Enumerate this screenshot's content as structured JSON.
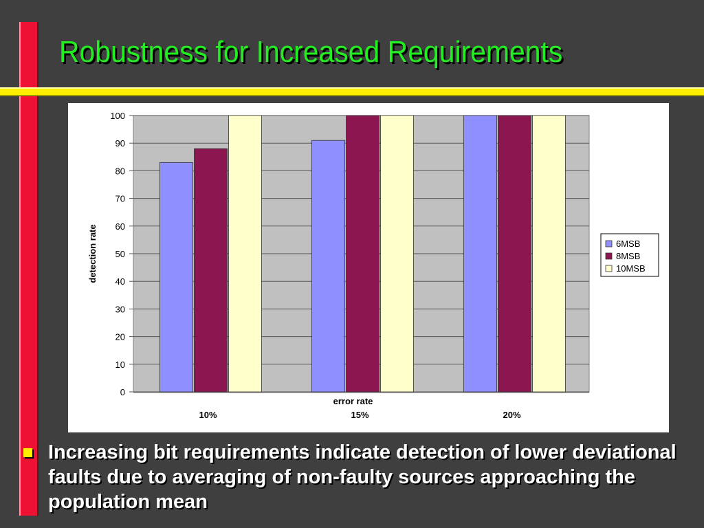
{
  "slide": {
    "title": "Robustness for Increased Requirements",
    "bullet": "Increasing bit requirements indicate detection of lower deviational faults due to averaging of non-faulty sources approaching the population mean"
  },
  "colors": {
    "background": "#3f3f3f",
    "title": "#22ee22",
    "accent_red": "#ee1133",
    "accent_yellow": "#ffee00",
    "plot_area": "#c0c0c0"
  },
  "chart_data": {
    "type": "bar",
    "xlabel": "error rate",
    "ylabel": "detection rate",
    "categories": [
      "10%",
      "15%",
      "20%"
    ],
    "ylim": [
      0,
      100
    ],
    "yticks": [
      0,
      10,
      20,
      30,
      40,
      50,
      60,
      70,
      80,
      90,
      100
    ],
    "grid": true,
    "legend_position": "right",
    "series": [
      {
        "name": "6MSB",
        "color": "#8f8fff",
        "values": [
          83,
          91,
          100
        ]
      },
      {
        "name": "8MSB",
        "color": "#8b1650",
        "values": [
          88,
          100,
          100
        ]
      },
      {
        "name": "10MSB",
        "color": "#ffffcc",
        "values": [
          100,
          100,
          100
        ]
      }
    ]
  }
}
